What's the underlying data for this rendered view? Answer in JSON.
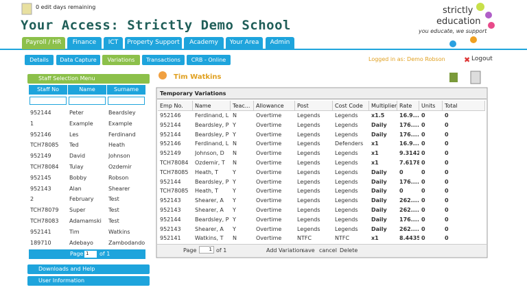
{
  "header": {
    "edit_days": "0 edit days remaining",
    "title": "Your Access: Strictly Demo School",
    "logo": {
      "line1": "strictly",
      "line2": "education",
      "tagline": "you educate, we support"
    }
  },
  "nav": {
    "tabs": [
      "Payroll / HR",
      "Finance",
      "ICT",
      "Property Support",
      "Academy",
      "Your Area",
      "Admin"
    ]
  },
  "subnav": {
    "tabs": [
      "Details",
      "Data Capture",
      "Variations",
      "Transactions",
      "CRB - Online"
    ],
    "logged_in": "Logged in as: Demo Robson",
    "logout": "Logout"
  },
  "staff_menu": {
    "title": "Staff Selection Menu",
    "columns": [
      "Staff No",
      "Name",
      "Surname"
    ],
    "rows": [
      [
        "952144",
        "Peter",
        "Beardsley"
      ],
      [
        "1",
        "Example",
        "Example"
      ],
      [
        "952146",
        "Les",
        "Ferdinand"
      ],
      [
        "TCH78085",
        "Ted",
        "Heath"
      ],
      [
        "952149",
        "David",
        "Johnson"
      ],
      [
        "TCH78084",
        "Tulay",
        "Ozdemir"
      ],
      [
        "952145",
        "Bobby",
        "Robson"
      ],
      [
        "952143",
        "Alan",
        "Shearer"
      ],
      [
        "2",
        "February",
        "Test"
      ],
      [
        "TCH78079",
        "Super",
        "Test"
      ],
      [
        "TCH78083",
        "Adamamski",
        "Test"
      ],
      [
        "952141",
        "Tim",
        "Watkins"
      ],
      [
        "189710",
        "Adebayo",
        "Zambodando"
      ]
    ],
    "pager": {
      "page_label": "Page",
      "page": "1",
      "of": "of 1"
    }
  },
  "side_panels": [
    "Downloads and Help",
    "User Information"
  ],
  "employee": "Tim Watkins",
  "grid": {
    "title": "Temporary Variations",
    "columns": [
      "Emp No.",
      "Name",
      "Teac...",
      "Allowance",
      "Post",
      "Cost Code",
      "Multiplier",
      "Rate",
      "Units",
      "Total"
    ],
    "rows": [
      [
        "952146",
        "Ferdinand, L",
        "N",
        "Overtime",
        "Legends",
        "Legends",
        "x1.5",
        "16.9...",
        "0",
        "0"
      ],
      [
        "952144",
        "Beardsley, P",
        "Y",
        "Overtime",
        "Legends",
        "Legends",
        "Daily",
        "176....",
        "0",
        "0"
      ],
      [
        "952144",
        "Beardsley, P",
        "Y",
        "Overtime",
        "Legends",
        "Legends",
        "Daily",
        "176....",
        "0",
        "0"
      ],
      [
        "952146",
        "Ferdinand, L",
        "N",
        "Overtime",
        "Legends",
        "Defenders",
        "x1",
        "16.9...",
        "0",
        "0"
      ],
      [
        "952149",
        "Johnson, D",
        "N",
        "Overtime",
        "Legends",
        "Legends",
        "x1",
        "9.3142",
        "0",
        "0"
      ],
      [
        "TCH78084",
        "Ozdemir, T",
        "N",
        "Overtime",
        "Legends",
        "Legends",
        "x1",
        "7.6178",
        "0",
        "0"
      ],
      [
        "TCH78085",
        "Heath, T",
        "Y",
        "Overtime",
        "Legends",
        "Legends",
        "Daily",
        "0",
        "0",
        "0"
      ],
      [
        "952144",
        "Beardsley, P",
        "Y",
        "Overtime",
        "Legends",
        "Legends",
        "Daily",
        "176....",
        "0",
        "0"
      ],
      [
        "TCH78085",
        "Heath, T",
        "Y",
        "Overtime",
        "Legends",
        "Legends",
        "Daily",
        "0",
        "0",
        "0"
      ],
      [
        "952143",
        "Shearer, A",
        "Y",
        "Overtime",
        "Legends",
        "Legends",
        "Daily",
        "262....",
        "0",
        "0"
      ],
      [
        "952143",
        "Shearer, A",
        "Y",
        "Overtime",
        "Legends",
        "Legends",
        "Daily",
        "262....",
        "0",
        "0"
      ],
      [
        "952144",
        "Beardsley, P",
        "Y",
        "Overtime",
        "Legends",
        "Legends",
        "Daily",
        "176....",
        "0",
        "0"
      ],
      [
        "952143",
        "Shearer, A",
        "Y",
        "Overtime",
        "Legends",
        "Legends",
        "Daily",
        "262....",
        "0",
        "0"
      ],
      [
        "952141",
        "Watkins, T",
        "N",
        "Overtime",
        "NTFC",
        "NTFC",
        "x1",
        "8.4435",
        "0",
        "0"
      ]
    ],
    "toolbar": {
      "page_label": "Page",
      "page": "1",
      "of": "of 1",
      "actions": [
        "Add Variation",
        "save",
        "cancel",
        "Delete"
      ]
    }
  }
}
